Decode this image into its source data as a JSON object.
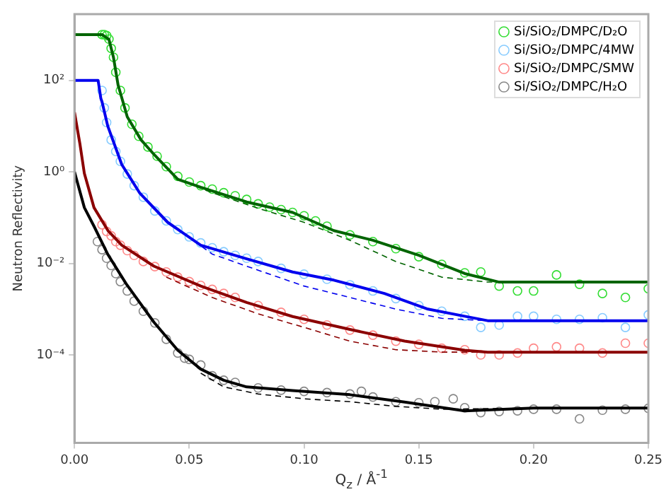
{
  "chart_data": {
    "type": "scatter",
    "xlabel": "Q$_{z}$ / Å$^{-1}$",
    "ylabel": "Neutron Reflectivity",
    "log": "y",
    "grid": false,
    "legend": "top right",
    "xlim": [
      0,
      0.25
    ],
    "xticks": [
      {
        "value": 0,
        "label": "0.00"
      },
      0.05,
      {
        "value": 0.1,
        "label": "0.10"
      },
      0.15,
      {
        "value": 0.2,
        "label": "0.20"
      },
      0.25
    ],
    "ylim": [
      1.2e-06,
      2800
    ],
    "yticks": [
      {
        "value": 0.0001,
        "label": "10⁻⁴"
      },
      {
        "value": 0.01,
        "label": "10⁻²"
      },
      {
        "value": 1,
        "label": "10⁰"
      },
      {
        "value": 100,
        "label": "10²"
      }
    ],
    "series": [
      {
        "name": "Si/SiO₂/DMPC/D₂O",
        "type": "scatter",
        "marker": "circle",
        "color": "#33dd33",
        "x": [
          0.012,
          0.013,
          0.014,
          0.015,
          0.016,
          0.017,
          0.018,
          0.02,
          0.022,
          0.025,
          0.028,
          0.032,
          0.036,
          0.04,
          0.045,
          0.05,
          0.055,
          0.06,
          0.065,
          0.07,
          0.075,
          0.08,
          0.085,
          0.09,
          0.095,
          0.1,
          0.105,
          0.11,
          0.12,
          0.13,
          0.14,
          0.15,
          0.16,
          0.17,
          0.177,
          0.185,
          0.193,
          0.2,
          0.21,
          0.22,
          0.23,
          0.24,
          0.25
        ],
        "values": [
          1000,
          1000,
          950,
          800,
          500,
          320,
          150,
          60,
          25,
          11,
          6,
          3.5,
          2.2,
          1.3,
          0.8,
          0.6,
          0.5,
          0.42,
          0.35,
          0.3,
          0.25,
          0.2,
          0.17,
          0.15,
          0.13,
          0.11,
          0.085,
          0.065,
          0.042,
          0.03,
          0.021,
          0.014,
          0.0095,
          0.0062,
          0.0065,
          0.0032,
          0.0025,
          0.0025,
          0.0056,
          0.0035,
          0.0022,
          0.0018,
          0.0028
        ]
      },
      {
        "name": "Si/SiO₂/DMPC/4MW",
        "type": "scatter",
        "marker": "circle",
        "color": "#88ccff",
        "x": [
          0.012,
          0.013,
          0.014,
          0.016,
          0.018,
          0.02,
          0.023,
          0.026,
          0.03,
          0.035,
          0.04,
          0.045,
          0.05,
          0.055,
          0.06,
          0.065,
          0.07,
          0.075,
          0.08,
          0.09,
          0.1,
          0.11,
          0.12,
          0.13,
          0.14,
          0.15,
          0.16,
          0.17,
          0.177,
          0.185,
          0.193,
          0.2,
          0.21,
          0.22,
          0.23,
          0.24,
          0.25
        ],
        "values": [
          60,
          25,
          12,
          5,
          2.8,
          1.7,
          0.9,
          0.5,
          0.28,
          0.14,
          0.085,
          0.055,
          0.038,
          0.028,
          0.022,
          0.018,
          0.015,
          0.013,
          0.011,
          0.0078,
          0.0058,
          0.0045,
          0.0034,
          0.0025,
          0.0017,
          0.0012,
          0.0009,
          0.0007,
          0.0004,
          0.00045,
          0.0007,
          0.0007,
          0.0006,
          0.0006,
          0.00065,
          0.0004,
          0.00075
        ]
      },
      {
        "name": "Si/SiO₂/DMPC/SMW",
        "type": "scatter",
        "marker": "circle",
        "color": "#ff8888",
        "x": [
          0.012,
          0.014,
          0.016,
          0.018,
          0.02,
          0.023,
          0.026,
          0.03,
          0.035,
          0.04,
          0.045,
          0.05,
          0.055,
          0.06,
          0.065,
          0.07,
          0.08,
          0.09,
          0.1,
          0.11,
          0.12,
          0.13,
          0.14,
          0.15,
          0.16,
          0.17,
          0.177,
          0.185,
          0.193,
          0.2,
          0.21,
          0.22,
          0.23,
          0.24,
          0.25
        ],
        "values": [
          0.07,
          0.05,
          0.04,
          0.03,
          0.025,
          0.019,
          0.015,
          0.011,
          0.0085,
          0.0065,
          0.005,
          0.004,
          0.0033,
          0.0027,
          0.0022,
          0.0018,
          0.0012,
          0.00085,
          0.0006,
          0.00045,
          0.00035,
          0.00027,
          0.0002,
          0.00017,
          0.00014,
          0.00013,
          0.0001,
          0.0001,
          0.00011,
          0.00014,
          0.00015,
          0.00014,
          0.00011,
          0.00018,
          0.00018
        ]
      },
      {
        "name": "Si/SiO₂/DMPC/H₂O",
        "type": "scatter",
        "marker": "circle",
        "color": "#888888",
        "x": [
          0.01,
          0.012,
          0.014,
          0.016,
          0.018,
          0.02,
          0.023,
          0.026,
          0.03,
          0.035,
          0.04,
          0.045,
          0.048,
          0.05,
          0.055,
          0.06,
          0.065,
          0.07,
          0.08,
          0.09,
          0.1,
          0.11,
          0.12,
          0.125,
          0.13,
          0.14,
          0.15,
          0.157,
          0.165,
          0.17,
          0.177,
          0.185,
          0.193,
          0.2,
          0.21,
          0.22,
          0.23,
          0.24,
          0.25
        ],
        "values": [
          0.03,
          0.02,
          0.013,
          0.009,
          0.006,
          0.004,
          0.0025,
          0.0015,
          0.0009,
          0.0005,
          0.00022,
          0.00011,
          8.5e-05,
          8e-05,
          6e-05,
          3.5e-05,
          2.8e-05,
          2.5e-05,
          1.9e-05,
          1.7e-05,
          1.6e-05,
          1.5e-05,
          1.4e-05,
          1.6e-05,
          1.2e-05,
          9.5e-06,
          9e-06,
          9.5e-06,
          1.1e-05,
          7e-06,
          5.5e-06,
          5.8e-06,
          6e-06,
          6.5e-06,
          6.5e-06,
          4e-06,
          6.2e-06,
          6.5e-06,
          6.8e-06
        ]
      },
      {
        "type": "line",
        "marker": "none",
        "line_style": "dashed",
        "color": "#006400",
        "x": [
          0.045,
          0.06,
          0.08,
          0.1,
          0.12,
          0.14,
          0.16,
          0.18,
          0.25
        ],
        "values": [
          0.69,
          0.35,
          0.16,
          0.079,
          0.032,
          0.011,
          0.005,
          0.0039,
          0.0039
        ]
      },
      {
        "type": "line",
        "marker": "none",
        "line_style": "dashed",
        "color": "#0000ee",
        "x": [
          0.045,
          0.06,
          0.08,
          0.1,
          0.12,
          0.14,
          0.16,
          0.18,
          0.25
        ],
        "values": [
          0.056,
          0.016,
          0.0071,
          0.0032,
          0.0018,
          0.001,
          0.00063,
          0.00056,
          0.00056
        ]
      },
      {
        "type": "line",
        "marker": "none",
        "line_style": "dashed",
        "color": "#8b0000",
        "x": [
          0.04,
          0.06,
          0.08,
          0.1,
          0.12,
          0.14,
          0.16,
          0.25
        ],
        "values": [
          0.005,
          0.0018,
          0.00079,
          0.0004,
          0.0002,
          0.00013,
          0.000115,
          0.000115
        ]
      },
      {
        "type": "line",
        "marker": "none",
        "line_style": "dashed",
        "color": "#000000",
        "x": [
          0.055,
          0.065,
          0.08,
          0.1,
          0.12,
          0.14,
          0.16,
          0.2,
          0.25
        ],
        "values": [
          4e-05,
          2e-05,
          1.4e-05,
          1.1e-05,
          9.5e-06,
          7.5e-06,
          6.5e-06,
          6.9e-06,
          6.9e-06
        ]
      },
      {
        "type": "line",
        "marker": "none",
        "line_style": "solid",
        "color": "#006400",
        "x": [
          0,
          0.012,
          0.015,
          0.017,
          0.019,
          0.023,
          0.029,
          0.035,
          0.045,
          0.055,
          0.075,
          0.095,
          0.113,
          0.13,
          0.15,
          0.17,
          0.185,
          0.25
        ],
        "values": [
          1000,
          1000,
          790,
          316,
          79,
          16,
          5,
          2.3,
          0.69,
          0.46,
          0.22,
          0.13,
          0.052,
          0.032,
          0.015,
          0.006,
          0.0039,
          0.0039
        ]
      },
      {
        "type": "line",
        "marker": "none",
        "line_style": "solid",
        "color": "#0000ee",
        "x": [
          0,
          0.0103,
          0.0115,
          0.012,
          0.0145,
          0.0206,
          0.0285,
          0.0406,
          0.055,
          0.075,
          0.095,
          0.113,
          0.135,
          0.154,
          0.17,
          0.18,
          0.25
        ],
        "values": [
          100,
          100,
          40,
          34,
          10,
          1.45,
          0.34,
          0.079,
          0.025,
          0.0126,
          0.0065,
          0.0043,
          0.0022,
          0.001,
          0.0007,
          0.00056,
          0.00056
        ]
      },
      {
        "type": "line",
        "marker": "none",
        "line_style": "solid",
        "color": "#8b0000",
        "x": [
          0,
          0.0024,
          0.0043,
          0.0085,
          0.0146,
          0.0206,
          0.0346,
          0.055,
          0.075,
          0.095,
          0.12,
          0.1438,
          0.17,
          0.18,
          0.25
        ],
        "values": [
          20,
          4,
          0.93,
          0.166,
          0.052,
          0.025,
          0.0087,
          0.0032,
          0.0014,
          0.00069,
          0.00036,
          0.0002,
          0.000126,
          0.000115,
          0.000115
        ]
      },
      {
        "type": "line",
        "marker": "none",
        "line_style": "solid",
        "color": "#000000",
        "x": [
          0,
          0.0043,
          0.0085,
          0.0146,
          0.0225,
          0.0346,
          0.045,
          0.055,
          0.065,
          0.075,
          0.095,
          0.12,
          0.1438,
          0.17,
          0.2,
          0.25
        ],
        "values": [
          1,
          0.166,
          0.065,
          0.0155,
          0.0036,
          0.00052,
          0.000126,
          4.9e-05,
          2.8e-05,
          2e-05,
          1.66e-05,
          1.35e-05,
          9.3e-06,
          6e-06,
          6.9e-06,
          6.9e-06
        ]
      }
    ]
  }
}
